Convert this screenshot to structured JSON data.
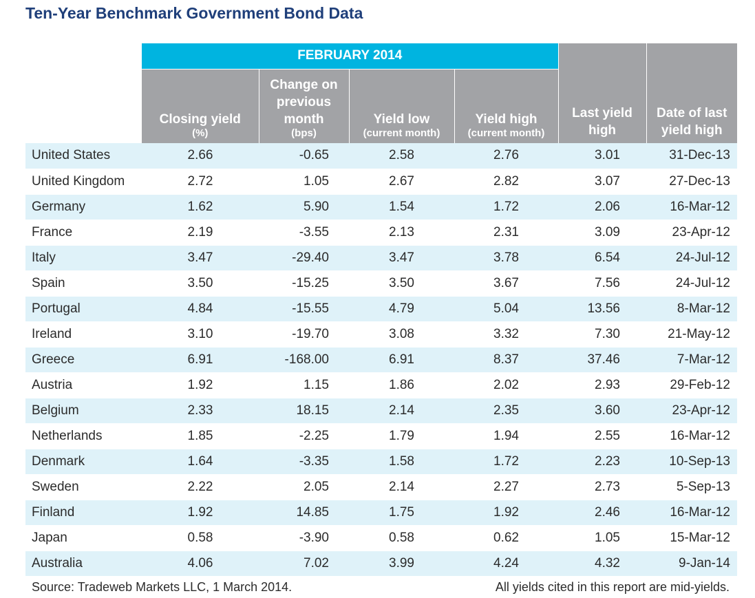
{
  "title": "Ten-Year Benchmark Government Bond Data",
  "header": {
    "band": "FEBRUARY 2014",
    "closing_yield": "Closing yield",
    "closing_yield_sub": "(%)",
    "change": "Change on previous month",
    "change_sub": "(bps)",
    "yield_low": "Yield low",
    "yield_low_sub": "(current month)",
    "yield_high": "Yield high",
    "yield_high_sub": "(current month)",
    "last_yield_high": "Last yield high",
    "date_last_yield_high": "Date of last yield high"
  },
  "rows": [
    {
      "country": "United States",
      "closing": "2.66",
      "change": "-0.65",
      "low": "2.58",
      "high": "2.76",
      "last": "3.01",
      "date": "31-Dec-13"
    },
    {
      "country": "United Kingdom",
      "closing": "2.72",
      "change": "1.05",
      "low": "2.67",
      "high": "2.82",
      "last": "3.07",
      "date": "27-Dec-13"
    },
    {
      "country": "Germany",
      "closing": "1.62",
      "change": "5.90",
      "low": "1.54",
      "high": "1.72",
      "last": "2.06",
      "date": "16-Mar-12"
    },
    {
      "country": "France",
      "closing": "2.19",
      "change": "-3.55",
      "low": "2.13",
      "high": "2.31",
      "last": "3.09",
      "date": "23-Apr-12"
    },
    {
      "country": "Italy",
      "closing": "3.47",
      "change": "-29.40",
      "low": "3.47",
      "high": "3.78",
      "last": "6.54",
      "date": "24-Jul-12"
    },
    {
      "country": "Spain",
      "closing": "3.50",
      "change": "-15.25",
      "low": "3.50",
      "high": "3.67",
      "last": "7.56",
      "date": "24-Jul-12"
    },
    {
      "country": "Portugal",
      "closing": "4.84",
      "change": "-15.55",
      "low": "4.79",
      "high": "5.04",
      "last": "13.56",
      "date": "8-Mar-12"
    },
    {
      "country": "Ireland",
      "closing": "3.10",
      "change": "-19.70",
      "low": "3.08",
      "high": "3.32",
      "last": "7.30",
      "date": "21-May-12"
    },
    {
      "country": "Greece",
      "closing": "6.91",
      "change": "-168.00",
      "low": "6.91",
      "high": "8.37",
      "last": "37.46",
      "date": "7-Mar-12"
    },
    {
      "country": "Austria",
      "closing": "1.92",
      "change": "1.15",
      "low": "1.86",
      "high": "2.02",
      "last": "2.93",
      "date": "29-Feb-12"
    },
    {
      "country": "Belgium",
      "closing": "2.33",
      "change": "18.15",
      "low": "2.14",
      "high": "2.35",
      "last": "3.60",
      "date": "23-Apr-12"
    },
    {
      "country": "Netherlands",
      "closing": "1.85",
      "change": "-2.25",
      "low": "1.79",
      "high": "1.94",
      "last": "2.55",
      "date": "16-Mar-12"
    },
    {
      "country": "Denmark",
      "closing": "1.64",
      "change": "-3.35",
      "low": "1.58",
      "high": "1.72",
      "last": "2.23",
      "date": "10-Sep-13"
    },
    {
      "country": "Sweden",
      "closing": "2.22",
      "change": "2.05",
      "low": "2.14",
      "high": "2.27",
      "last": "2.73",
      "date": "5-Sep-13"
    },
    {
      "country": "Finland",
      "closing": "1.92",
      "change": "14.85",
      "low": "1.75",
      "high": "1.92",
      "last": "2.46",
      "date": "16-Mar-12"
    },
    {
      "country": "Japan",
      "closing": "0.58",
      "change": "-3.90",
      "low": "0.58",
      "high": "0.62",
      "last": "1.05",
      "date": "15-Mar-12"
    },
    {
      "country": "Australia",
      "closing": "4.06",
      "change": "7.02",
      "low": "3.99",
      "high": "4.24",
      "last": "4.32",
      "date": "9-Jan-14"
    }
  ],
  "footer": {
    "source": "Source: Tradeweb Markets LLC, 1 March 2014.",
    "note": "All yields cited in this report are mid-yields."
  },
  "colors": {
    "title": "#1f3f7a",
    "band": "#00b4e0",
    "header_gray": "#a2a3a6",
    "row_alt": "#dff2f9"
  }
}
